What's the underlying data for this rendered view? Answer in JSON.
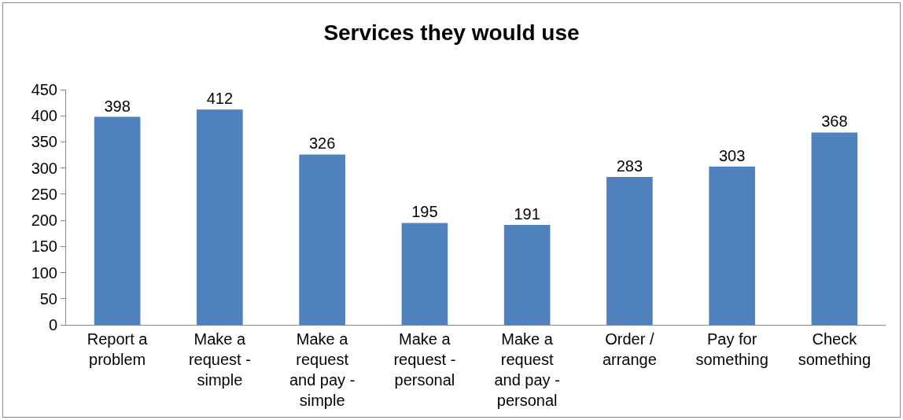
{
  "chart_data": {
    "type": "bar",
    "title": "Services they would use",
    "categories": [
      "Report a problem",
      "Make a request - simple",
      "Make a request and pay - simple",
      "Make a request - personal",
      "Make a request and pay - personal",
      "Order / arrange",
      "Pay for something",
      "Check something"
    ],
    "values": [
      398,
      412,
      326,
      195,
      191,
      283,
      303,
      368
    ],
    "color": "#4f81bd",
    "ylim": [
      0,
      450
    ],
    "yticks": [
      0,
      50,
      100,
      150,
      200,
      250,
      300,
      350,
      400,
      450
    ],
    "grid": false,
    "data_labels": true
  }
}
